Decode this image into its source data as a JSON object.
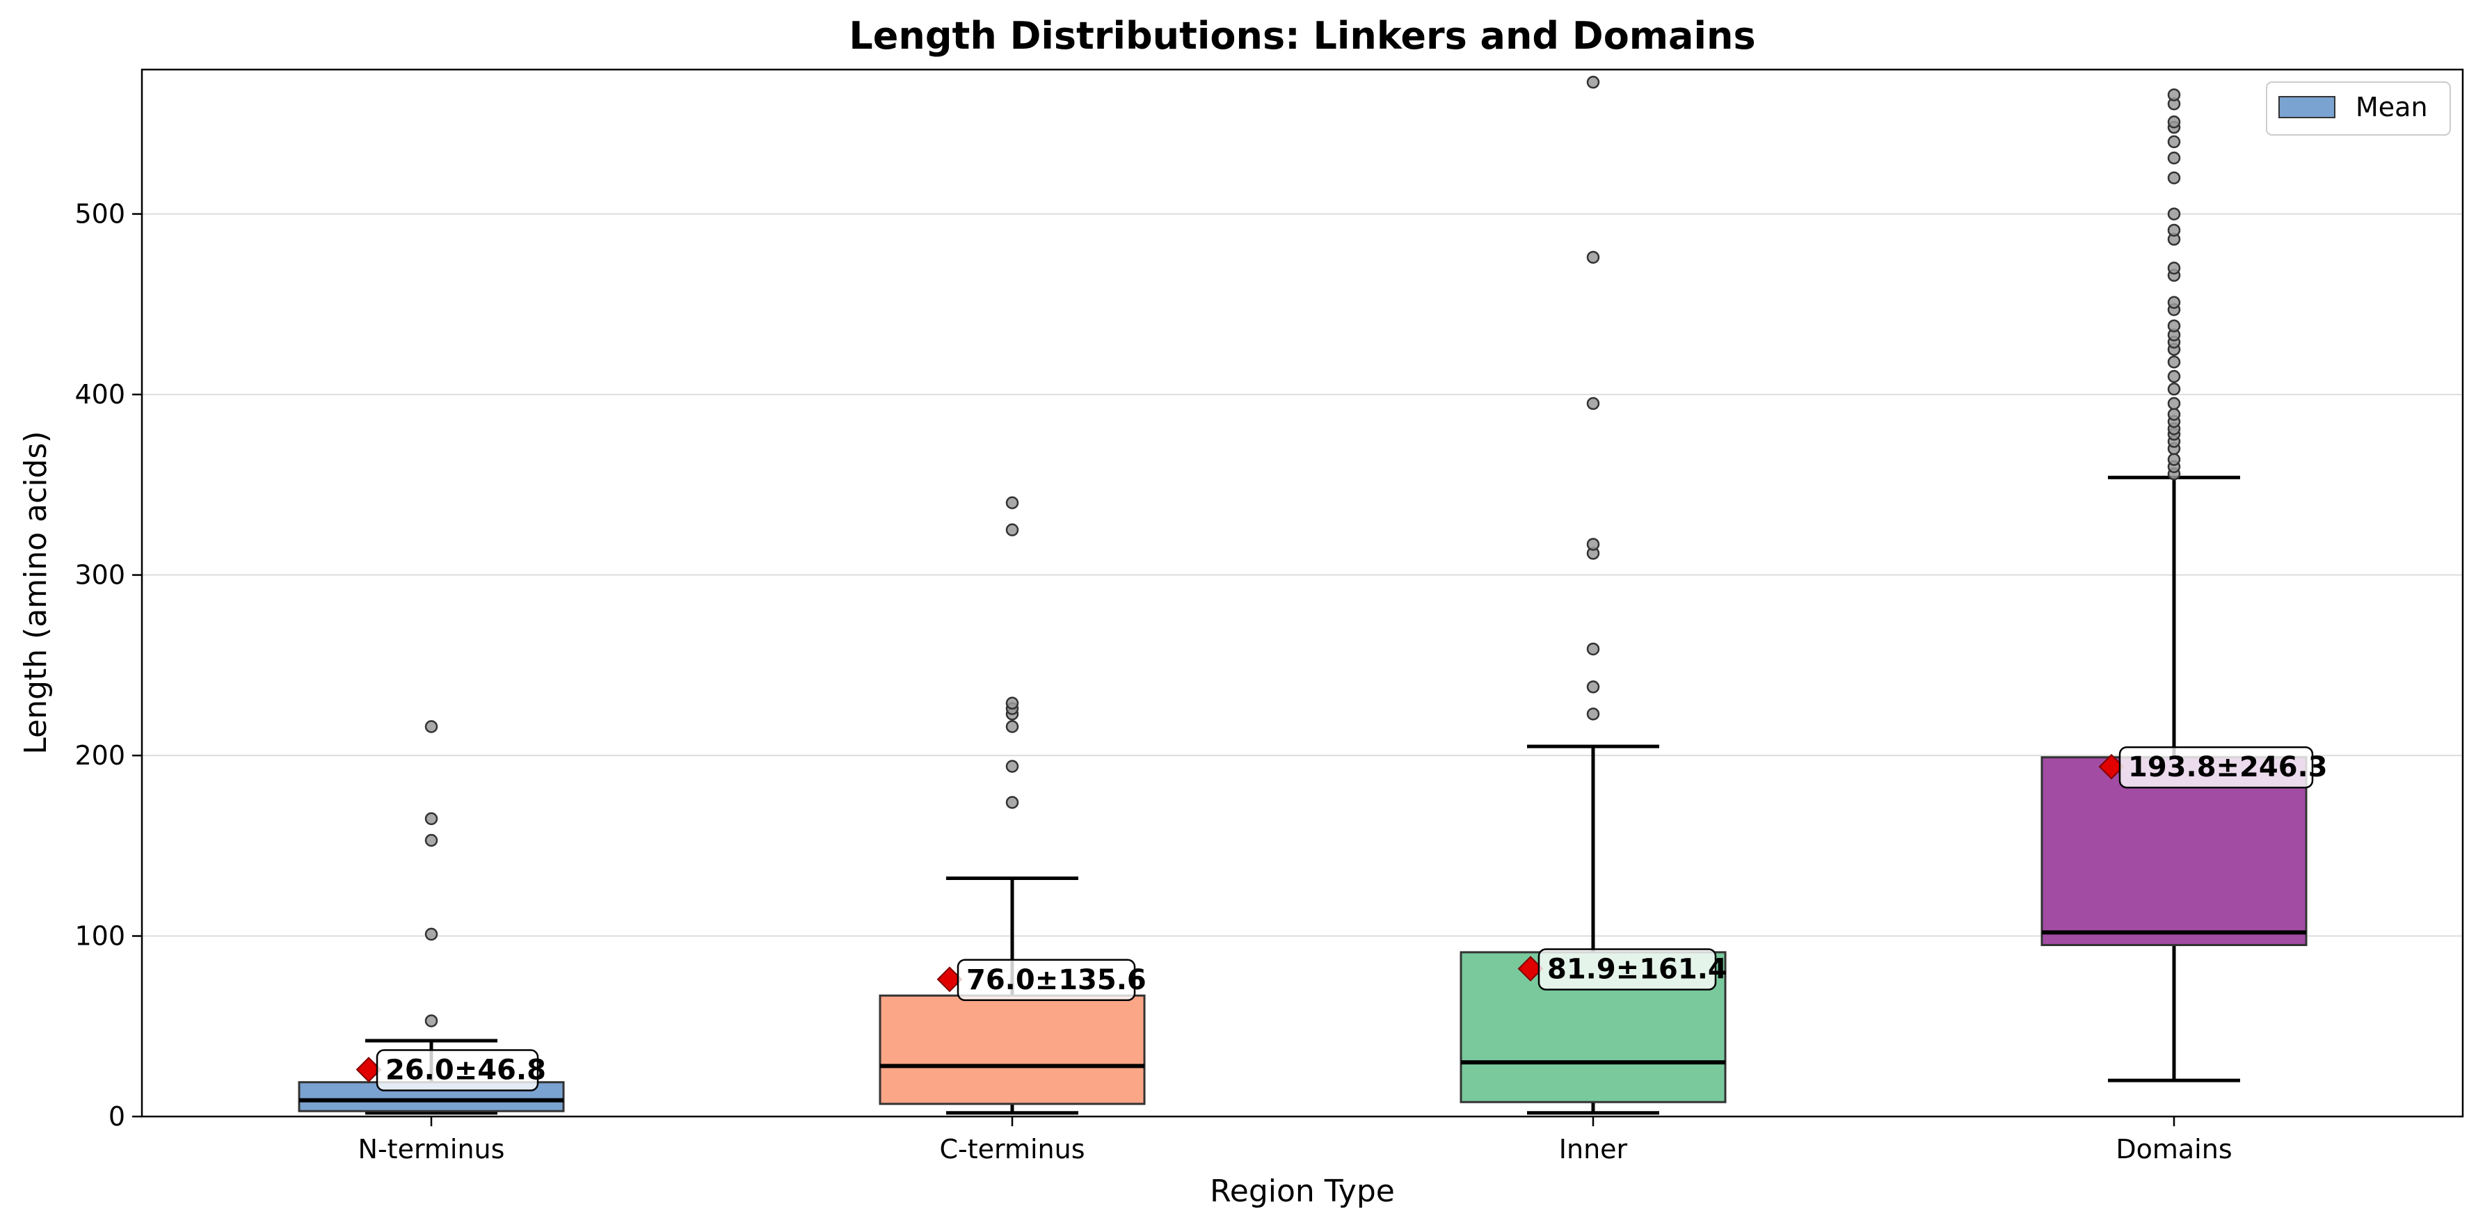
{
  "chart_data": {
    "type": "box",
    "title": "Length Distributions: Linkers and Domains",
    "xlabel": "Region Type",
    "ylabel": "Length (amino acids)",
    "ylim": [
      0,
      580
    ],
    "yticks": [
      0,
      100,
      200,
      300,
      400,
      500
    ],
    "grid": "y",
    "legend": {
      "label": "Mean",
      "placement": "top-right",
      "swatch_color": "#7ba3d1"
    },
    "mean_marker_color": "#e00000",
    "categories": [
      "N-terminus",
      "C-terminus",
      "Inner",
      "Domains"
    ],
    "boxes": [
      {
        "name": "N-terminus",
        "color": "#7ba3d1",
        "whislo": 2,
        "q1": 3,
        "median": 9,
        "q3": 19,
        "whishi": 42,
        "mean": 26.0,
        "sd": 46.8,
        "label": "26.0±46.8",
        "fliers": [
          53,
          101,
          153,
          165,
          216
        ]
      },
      {
        "name": "C-terminus",
        "color": "#fca688",
        "whislo": 2,
        "q1": 7,
        "median": 28,
        "q3": 67,
        "whishi": 132,
        "mean": 76.0,
        "sd": 135.6,
        "label": "76.0±135.6",
        "fliers": [
          174,
          194,
          216,
          223,
          226,
          229,
          325,
          340
        ]
      },
      {
        "name": "Inner",
        "color": "#79c99c",
        "whislo": 2,
        "q1": 8,
        "median": 30,
        "q3": 91,
        "whishi": 205,
        "mean": 81.9,
        "sd": 161.4,
        "label": "81.9±161.4",
        "fliers": [
          223,
          238,
          259,
          312,
          317,
          395,
          476,
          573
        ]
      },
      {
        "name": "Domains",
        "color": "#a24ca4",
        "whislo": 20,
        "q1": 95,
        "median": 102,
        "q3": 199,
        "whishi": 354,
        "mean": 193.8,
        "sd": 246.3,
        "label": "193.8±246.3",
        "fliers": [
          356,
          360,
          364,
          370,
          374,
          378,
          381,
          385,
          389,
          395,
          403,
          410,
          418,
          425,
          429,
          433,
          438,
          447,
          451,
          466,
          470,
          486,
          491,
          500,
          520,
          531,
          540,
          548,
          551,
          561,
          566
        ]
      }
    ]
  }
}
